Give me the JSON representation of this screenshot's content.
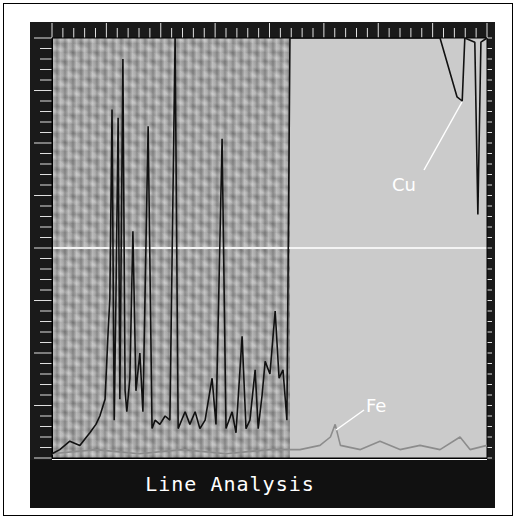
{
  "chart_data": {
    "type": "line",
    "title": "Line Analysis",
    "xlim": [
      0,
      100
    ],
    "ylim": [
      0,
      100
    ],
    "tick_labels": false,
    "grid": false,
    "series": [
      {
        "name": "Cu",
        "color": "#111111",
        "x": [
          0,
          1.8,
          4.1,
          6.4,
          8.7,
          10.1,
          11.0,
          12.2,
          12.9,
          13.3,
          13.8,
          14.3,
          14.7,
          15.2,
          15.6,
          16.3,
          16.8,
          17.2,
          17.9,
          18.6,
          19.3,
          20.2,
          20.9,
          22.1,
          23.0,
          23.7,
          24.8,
          26.0,
          27.1,
          28.3,
          29.0,
          30.6,
          31.7,
          32.9,
          34.0,
          35.2,
          36.8,
          37.7,
          39.1,
          40.0,
          41.4,
          42.3,
          43.7,
          44.6,
          45.5,
          46.7,
          47.4,
          48.3,
          49.0,
          50.1,
          51.3,
          52.2,
          53.1,
          54.0,
          54.7,
          89.2,
          93.1,
          94.3,
          94.9,
          97.2,
          97.9,
          98.6,
          100
        ],
        "values": [
          1,
          2,
          4,
          3,
          6,
          8,
          10,
          14,
          30,
          38,
          83,
          9,
          38,
          81,
          14,
          95,
          16,
          11,
          19,
          54,
          16,
          25,
          11,
          79,
          7,
          9,
          8,
          10,
          9,
          100,
          7,
          11,
          8,
          11,
          7,
          9,
          19,
          8,
          76,
          7,
          11,
          6,
          29,
          7,
          9,
          21,
          7,
          15,
          23,
          20,
          35,
          19,
          21,
          9,
          100,
          100,
          86,
          85,
          100,
          99,
          58,
          99,
          100
        ]
      },
      {
        "name": "Fe",
        "color": "#8c8c8c",
        "x": [
          0,
          10,
          20,
          30,
          40,
          50,
          54.7,
          57,
          61.6,
          64,
          65.1,
          66.3,
          70.9,
          75.4,
          80,
          84.6,
          89.2,
          93.8,
          96.1,
          100
        ],
        "values": [
          1,
          2,
          1,
          2,
          1,
          2,
          2,
          2,
          3,
          5,
          8,
          3,
          2,
          4,
          2,
          3,
          2,
          5,
          2,
          3
        ]
      }
    ]
  }
}
